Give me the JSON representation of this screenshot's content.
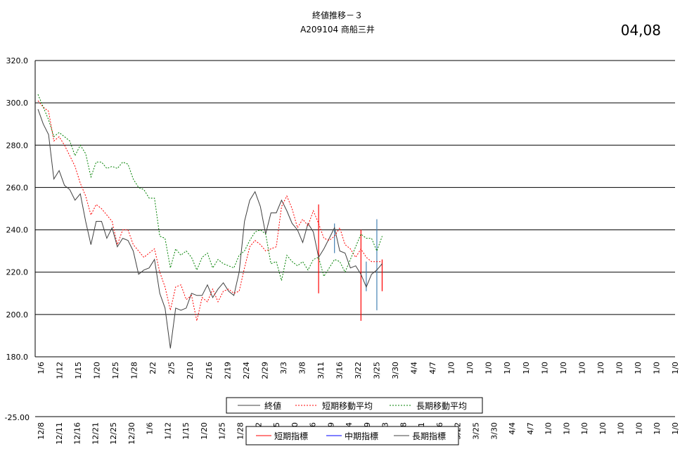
{
  "chart_data": {
    "type": "line",
    "title": "終値推移－３",
    "subtitle": "A209104 商船三井",
    "corner_label": "04,08",
    "ylim": [
      1800,
      3200
    ],
    "y_ticks": [
      "320.0",
      "300.0",
      "280.0",
      "260.0",
      "240.0",
      "220.0",
      "200.0",
      "180.0"
    ],
    "y_tick_values": [
      3200,
      3000,
      2800,
      2600,
      2400,
      2200,
      2000,
      1800
    ],
    "grid": true,
    "legend_position": "bottom",
    "x_labels": [
      "1/6",
      "1/12",
      "1/15",
      "1/20",
      "1/25",
      "1/28",
      "2/2",
      "2/5",
      "2/10",
      "2/16",
      "2/19",
      "2/24",
      "2/29",
      "3/3",
      "3/8",
      "3/11",
      "3/16",
      "3/22",
      "3/25",
      "3/30",
      "4/4",
      "4/7",
      "1/0",
      "1/0",
      "1/0",
      "1/0",
      "1/0",
      "1/0",
      "1/0",
      "1/0",
      "1/0",
      "1/0",
      "1/0",
      "1/0",
      "1/0"
    ],
    "series": [
      {
        "name": "終値",
        "color": "#404040",
        "dash": "solid",
        "values": [
          2970,
          2900,
          2850,
          2640,
          2680,
          2610,
          2590,
          2540,
          2570,
          2440,
          2330,
          2440,
          2440,
          2360,
          2410,
          2320,
          2360,
          2350,
          2300,
          2190,
          2210,
          2220,
          2260,
          2100,
          2030,
          1840,
          2030,
          2020,
          2030,
          2100,
          2090,
          2090,
          2140,
          2080,
          2120,
          2150,
          2110,
          2090,
          2200,
          2440,
          2540,
          2580,
          2510,
          2380,
          2480,
          2480,
          2540,
          2490,
          2430,
          2400,
          2340,
          2430,
          2390,
          2270,
          2310,
          2360,
          2410,
          2300,
          2290,
          2220,
          2230,
          2190,
          2130,
          2190,
          2210,
          2240
        ]
      },
      {
        "name": "短期移動平均",
        "color": "#ff0000",
        "dash": "dotted",
        "values": [
          3010,
          2980,
          2960,
          2820,
          2840,
          2800,
          2750,
          2700,
          2620,
          2560,
          2470,
          2520,
          2500,
          2470,
          2440,
          2330,
          2400,
          2400,
          2330,
          2300,
          2270,
          2290,
          2310,
          2200,
          2130,
          2020,
          2130,
          2140,
          2070,
          2090,
          1970,
          2080,
          2060,
          2120,
          2060,
          2110,
          2120,
          2100,
          2110,
          2220,
          2320,
          2350,
          2330,
          2300,
          2310,
          2320,
          2510,
          2560,
          2500,
          2410,
          2450,
          2420,
          2490,
          2430,
          2360,
          2350,
          2370,
          2410,
          2330,
          2310,
          2270,
          2310,
          2270,
          2250,
          2250,
          2250
        ]
      },
      {
        "name": "長期移動平均",
        "color": "#008000",
        "dash": "dotted",
        "values": [
          3040,
          2980,
          2920,
          2840,
          2860,
          2840,
          2820,
          2750,
          2800,
          2760,
          2650,
          2720,
          2720,
          2690,
          2700,
          2690,
          2720,
          2710,
          2640,
          2600,
          2590,
          2550,
          2550,
          2370,
          2360,
          2220,
          2310,
          2280,
          2300,
          2270,
          2210,
          2270,
          2290,
          2220,
          2260,
          2240,
          2230,
          2220,
          2280,
          2300,
          2350,
          2390,
          2400,
          2380,
          2240,
          2250,
          2160,
          2280,
          2250,
          2230,
          2250,
          2210,
          2260,
          2270,
          2180,
          2220,
          2260,
          2250,
          2200,
          2260,
          2320,
          2380,
          2360,
          2360,
          2300,
          2370
        ]
      }
    ],
    "indicator_bars": [
      {
        "color": "#ff0000",
        "index": 53,
        "low": 2100,
        "high": 2520
      },
      {
        "color": "#4682b4",
        "index": 56,
        "low": 2290,
        "high": 2430
      },
      {
        "color": "#ff0000",
        "index": 61,
        "low": 1970,
        "high": 2400
      },
      {
        "color": "#4682b4",
        "index": 62,
        "low": 2110,
        "high": 2250
      },
      {
        "color": "#4682b4",
        "index": 64,
        "low": 2020,
        "high": 2450
      },
      {
        "color": "#ff0000",
        "index": 65,
        "low": 2110,
        "high": 2260
      }
    ],
    "indicator_axis_label": "-25.00",
    "indicator_x_labels": [
      "12/8",
      "12/11",
      "12/16",
      "12/21",
      "12/25",
      "12/30",
      "1/6",
      "1/12",
      "1/15",
      "1/20",
      "1/25",
      "1/28",
      "2/2",
      "2/5",
      "2/10",
      "2/16",
      "2/19",
      "2/24",
      "2/29",
      "3/3",
      "3/8",
      "3/11",
      "3/16",
      "3/22",
      "3/25",
      "3/30",
      "4/4",
      "4/7",
      "1/0",
      "1/0",
      "1/0",
      "1/0",
      "1/0",
      "1/0",
      "1/0",
      "1/0"
    ],
    "legend2": [
      {
        "name": "短期指標",
        "color": "#ff0000"
      },
      {
        "name": "中期指標",
        "color": "#0000ff"
      },
      {
        "name": "長期指標",
        "color": "#404040"
      }
    ]
  }
}
